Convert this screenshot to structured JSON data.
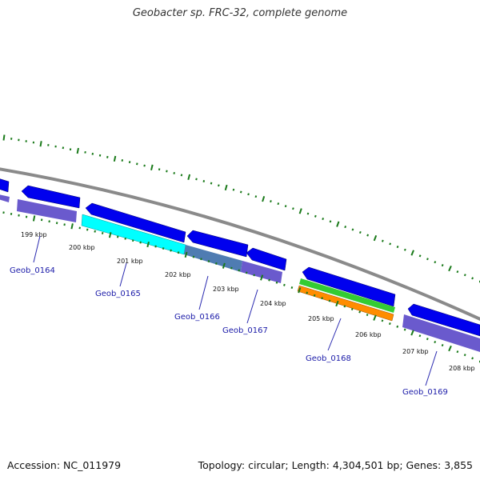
{
  "title": "Geobacter sp. FRC-32, complete genome",
  "footer": {
    "accession": "Accession: NC_011979",
    "summary": "Topology: circular; Length: 4,304,501 bp; Genes: 3,855"
  },
  "colors": {
    "backbone": "#8a8a8a",
    "feature_blue": "#0000ee",
    "feature_purple": "#6a5acd",
    "feature_cyan": "#00ffff",
    "feature_steel": "#4f7cb2",
    "feature_green": "#33cc33",
    "feature_orange": "#ff8c00",
    "tick_green": "#1a7a1a",
    "gene_label": "#1a1aa8"
  },
  "scale_labels": [
    "199 kbp",
    "200 kbp",
    "201 kbp",
    "202 kbp",
    "203 kbp",
    "204 kbp",
    "205 kbp",
    "206 kbp",
    "207 kbp",
    "208 kbp"
  ],
  "genes": [
    "Geob_0164",
    "Geob_0165",
    "Geob_0166",
    "Geob_0167",
    "Geob_0168",
    "Geob_0169"
  ]
}
